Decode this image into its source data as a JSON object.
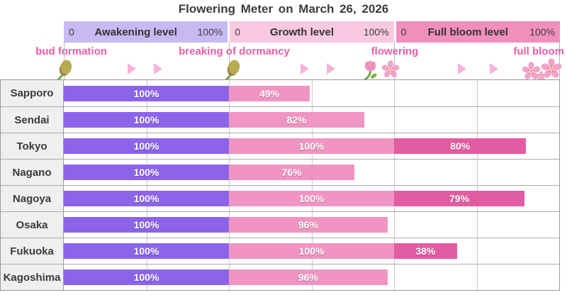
{
  "title": "Flowering Meter  on  March 26, 2026",
  "scales": [
    {
      "min": "0",
      "label": "Awakening level",
      "max": "100%",
      "color": "#c9b9f2"
    },
    {
      "min": "0",
      "label": "Growth level",
      "max": "100%",
      "color": "#f8c9e0"
    },
    {
      "min": "0",
      "label": "Full bloom level",
      "max": "100%",
      "color": "#f08fbc"
    }
  ],
  "stages": [
    {
      "label": "bud formation",
      "icon": "bud-icon"
    },
    {
      "label": "breaking of dormancy",
      "icon": "bud-icon"
    },
    {
      "label": "flowering",
      "icon": "tulip-icon cherry-blossom-icon"
    },
    {
      "label": "full bloom",
      "icon": "cherry-blossom-icons"
    }
  ],
  "stage_label_color": "#e85fa4",
  "arrow_icon": "right-triangle-arrow",
  "arrow_color": "#f6b3d8",
  "chart_data": {
    "type": "bar",
    "orientation": "horizontal",
    "title": "Flowering Meter on March 26, 2026",
    "categories": [
      "Sapporo",
      "Sendai",
      "Tokyo",
      "Nagano",
      "Nagoya",
      "Osaka",
      "Fukuoka",
      "Kagoshima"
    ],
    "series": [
      {
        "name": "Awakening level",
        "color": "#8c64ea",
        "values": [
          100,
          100,
          100,
          100,
          100,
          100,
          100,
          100
        ]
      },
      {
        "name": "Growth level",
        "color": "#f095c3",
        "values": [
          49,
          82,
          100,
          76,
          100,
          96,
          100,
          96
        ]
      },
      {
        "name": "Full bloom level",
        "color": "#e25ca2",
        "values": [
          null,
          null,
          80,
          null,
          79,
          null,
          38,
          null
        ]
      }
    ],
    "axis_range_per_stage": [
      0,
      100
    ],
    "value_suffix": "%",
    "grid": true,
    "legend_position": "top-scale-band"
  }
}
